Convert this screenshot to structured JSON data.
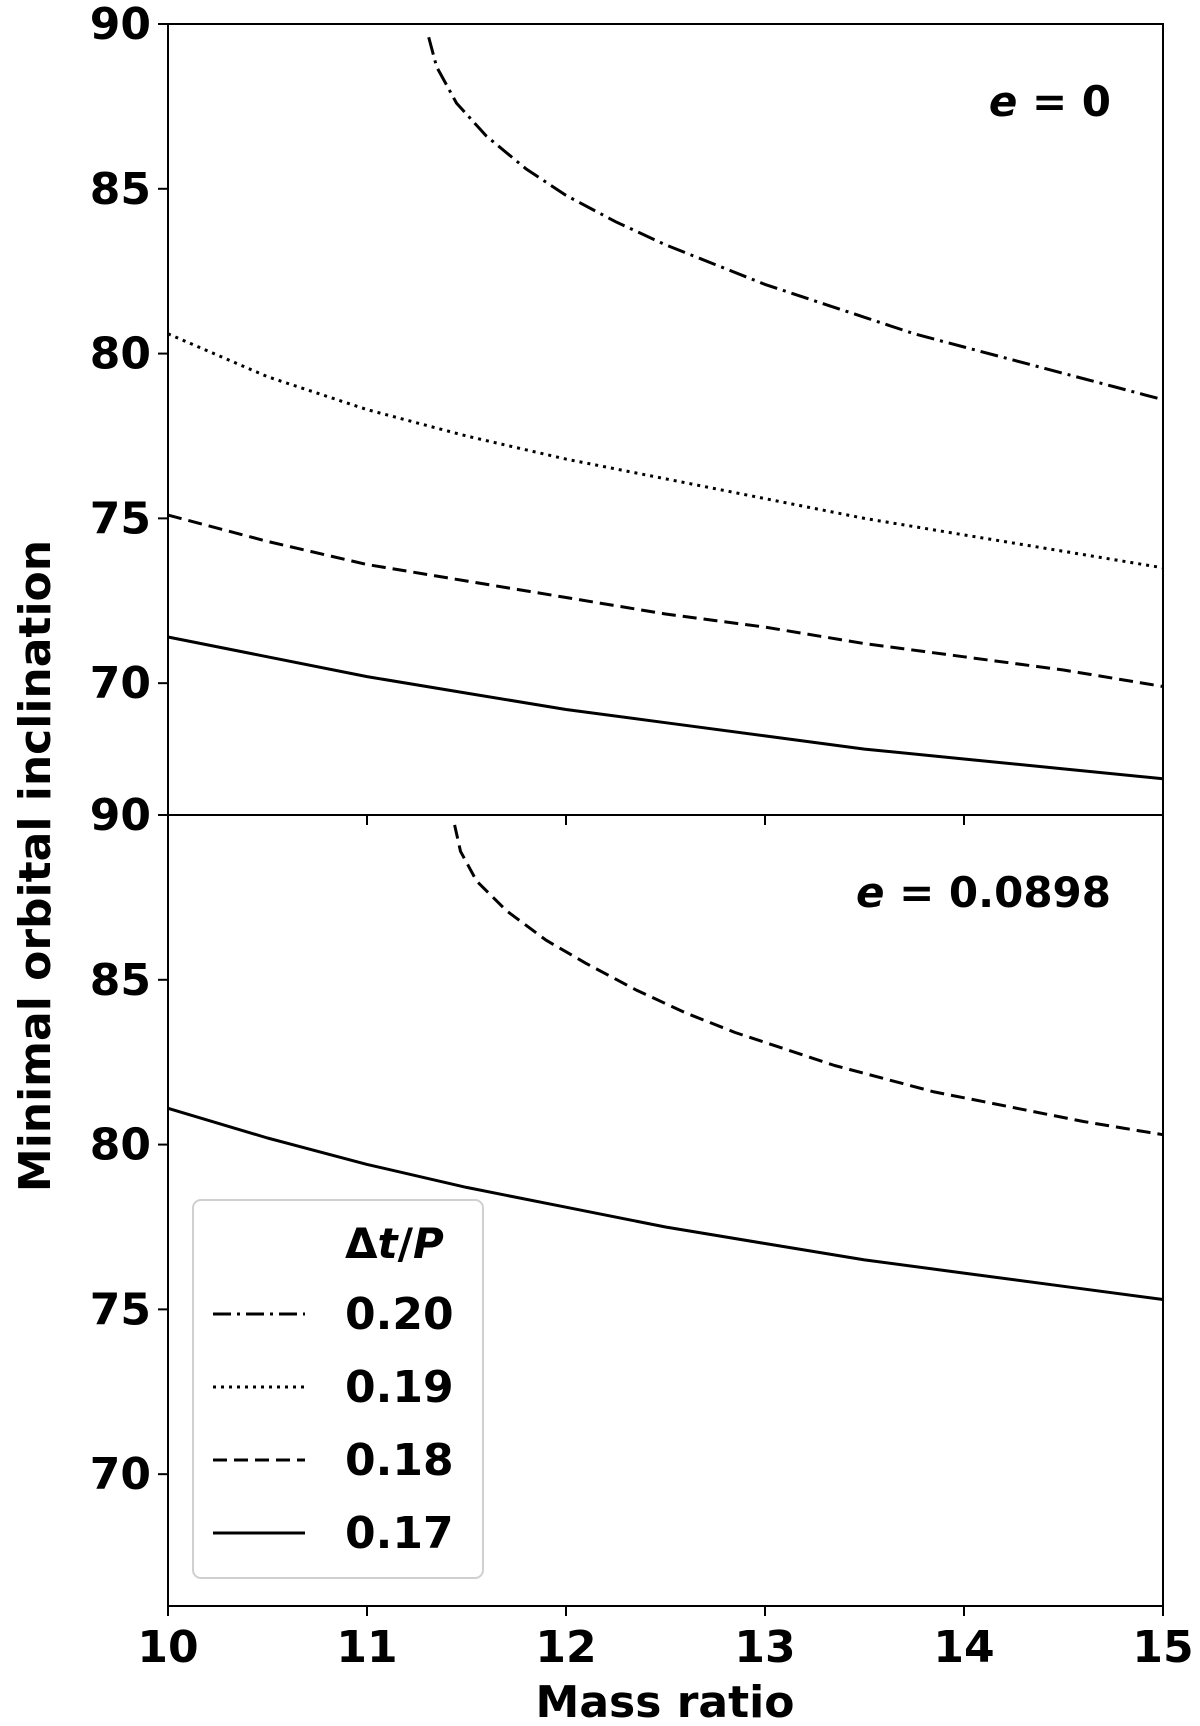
{
  "figure": {
    "ylabel": "Minimal orbital inclination",
    "xlabel": "Mass ratio"
  },
  "legend": {
    "title_symbol": "Δ",
    "title_t": "t",
    "title_slash": "/",
    "title_P": "P",
    "location": "lower-left",
    "entries": [
      {
        "label": "0.20",
        "style": "dashdot"
      },
      {
        "label": "0.19",
        "style": "dotted"
      },
      {
        "label": "0.18",
        "style": "dashed"
      },
      {
        "label": "0.17",
        "style": "solid"
      }
    ]
  },
  "chart_data": [
    {
      "type": "line",
      "annotation_var": "e",
      "annotation_value": "= 0",
      "xlim": [
        10,
        15
      ],
      "ylim": [
        66,
        90
      ],
      "xticks": [
        10,
        11,
        12,
        13,
        14,
        15
      ],
      "yticks": [
        70,
        75,
        80,
        85,
        90
      ],
      "series": [
        {
          "name": "0.20",
          "style": "dashdot",
          "x": [
            11.31,
            11.35,
            11.45,
            11.6,
            11.8,
            12.0,
            12.25,
            12.5,
            12.75,
            13.0,
            13.25,
            13.5,
            13.75,
            14.0,
            14.25,
            14.5,
            14.75,
            15.0
          ],
          "y": [
            89.6,
            88.7,
            87.6,
            86.6,
            85.6,
            84.8,
            84.0,
            83.3,
            82.7,
            82.1,
            81.6,
            81.1,
            80.6,
            80.2,
            79.8,
            79.4,
            79.0,
            78.6
          ]
        },
        {
          "name": "0.19",
          "style": "dotted",
          "x": [
            10.0,
            10.5,
            11.0,
            11.5,
            12.0,
            12.5,
            13.0,
            13.5,
            14.0,
            14.5,
            15.0
          ],
          "y": [
            80.6,
            79.3,
            78.3,
            77.5,
            76.8,
            76.2,
            75.6,
            75.0,
            74.5,
            74.0,
            73.5
          ]
        },
        {
          "name": "0.18",
          "style": "dashed",
          "x": [
            10.0,
            10.5,
            11.0,
            11.5,
            12.0,
            12.5,
            13.0,
            13.5,
            14.0,
            14.5,
            15.0
          ],
          "y": [
            75.1,
            74.3,
            73.6,
            73.1,
            72.6,
            72.1,
            71.7,
            71.2,
            70.8,
            70.4,
            69.9
          ]
        },
        {
          "name": "0.17",
          "style": "solid",
          "x": [
            10.0,
            10.5,
            11.0,
            11.5,
            12.0,
            12.5,
            13.0,
            13.5,
            14.0,
            14.5,
            15.0
          ],
          "y": [
            71.4,
            70.8,
            70.2,
            69.7,
            69.2,
            68.8,
            68.4,
            68.0,
            67.7,
            67.4,
            67.1
          ]
        }
      ]
    },
    {
      "type": "line",
      "annotation_var": "e",
      "annotation_value": "= 0.0898",
      "xlim": [
        10,
        15
      ],
      "ylim": [
        66,
        90
      ],
      "xticks": [
        10,
        11,
        12,
        13,
        14,
        15
      ],
      "xticklabels": [
        "10",
        "11",
        "12",
        "13",
        "14",
        "15"
      ],
      "yticks": [
        70,
        75,
        80,
        85,
        90
      ],
      "series": [
        {
          "name": "0.18",
          "style": "dashed",
          "x": [
            11.44,
            11.47,
            11.55,
            11.7,
            11.9,
            12.1,
            12.35,
            12.6,
            12.85,
            13.1,
            13.35,
            13.6,
            13.85,
            14.1,
            14.35,
            14.6,
            14.8,
            15.0
          ],
          "y": [
            89.7,
            88.9,
            88.0,
            87.1,
            86.2,
            85.5,
            84.7,
            84.0,
            83.4,
            82.9,
            82.4,
            82.0,
            81.6,
            81.3,
            81.0,
            80.7,
            80.5,
            80.3
          ]
        },
        {
          "name": "0.17",
          "style": "solid",
          "x": [
            10.0,
            10.5,
            11.0,
            11.5,
            12.0,
            12.5,
            13.0,
            13.5,
            14.0,
            14.5,
            15.0
          ],
          "y": [
            81.1,
            80.2,
            79.4,
            78.7,
            78.1,
            77.5,
            77.0,
            76.5,
            76.1,
            75.7,
            75.3
          ]
        }
      ]
    }
  ]
}
